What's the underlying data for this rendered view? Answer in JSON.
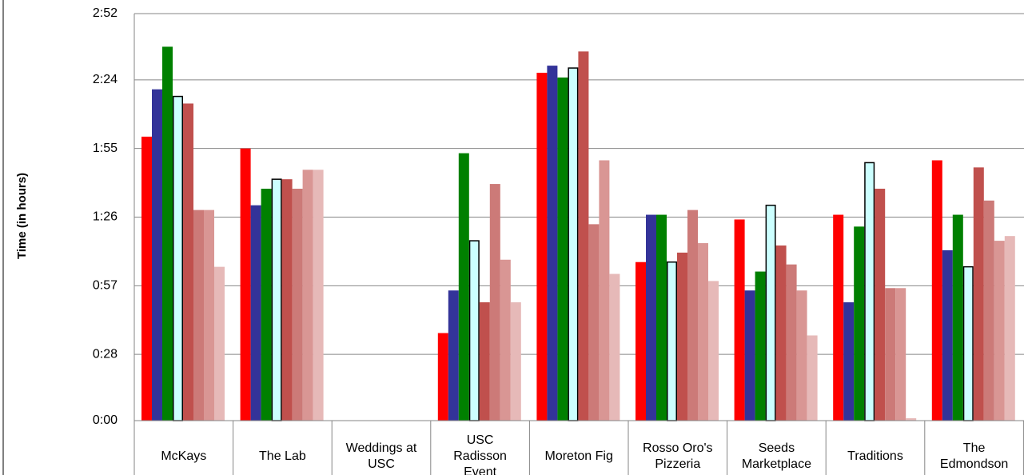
{
  "chart_data": {
    "type": "bar",
    "title": "",
    "xlabel": "",
    "ylabel": "Time (in hours)",
    "ylim_minutes": [
      0,
      172
    ],
    "y_ticks": [
      {
        "minutes": 0,
        "label": "0:00"
      },
      {
        "minutes": 28,
        "label": "0:28"
      },
      {
        "minutes": 57,
        "label": "0:57"
      },
      {
        "minutes": 86,
        "label": "1:26"
      },
      {
        "minutes": 115,
        "label": "1:55"
      },
      {
        "minutes": 144,
        "label": "2:24"
      },
      {
        "minutes": 172,
        "label": "2:52"
      }
    ],
    "grid": true,
    "legend": "none",
    "categories": [
      [
        "McKays"
      ],
      [
        "The Lab"
      ],
      [
        "Weddings at",
        "USC"
      ],
      [
        "USC",
        "Radisson",
        "Event"
      ],
      [
        "Moreton Fig"
      ],
      [
        "Rosso Oro's",
        "Pizzeria"
      ],
      [
        "Seeds",
        "Marketplace"
      ],
      [
        "Traditions"
      ],
      [
        "The",
        "Edmondson"
      ]
    ],
    "value_unit": "minutes",
    "series": [
      {
        "color": "#ff0000",
        "outline": "",
        "values": [
          120,
          115,
          0,
          37,
          147,
          67,
          85,
          87,
          110
        ]
      },
      {
        "color": "#333399",
        "outline": "",
        "values": [
          140,
          91,
          0,
          55,
          150,
          87,
          55,
          50,
          72
        ]
      },
      {
        "color": "#008000",
        "outline": "",
        "values": [
          158,
          98,
          0,
          113,
          145,
          87,
          63,
          82,
          87
        ]
      },
      {
        "color": "#ccffff",
        "outline": "#000000",
        "values": [
          137,
          102,
          0,
          76,
          149,
          67,
          91,
          109,
          65
        ]
      },
      {
        "color": "#c0504d",
        "outline": "",
        "values": [
          134,
          102,
          0,
          50,
          156,
          71,
          74,
          98,
          107
        ]
      },
      {
        "color": "#cc7a78",
        "outline": "",
        "values": [
          89,
          98,
          0,
          100,
          83,
          89,
          66,
          56,
          93
        ]
      },
      {
        "color": "#d99694",
        "outline": "",
        "values": [
          89,
          106,
          0,
          68,
          110,
          75,
          55,
          56,
          76
        ]
      },
      {
        "color": "#e6b9b8",
        "outline": "",
        "values": [
          65,
          106,
          0,
          50,
          62,
          59,
          36,
          1,
          78
        ]
      }
    ]
  }
}
